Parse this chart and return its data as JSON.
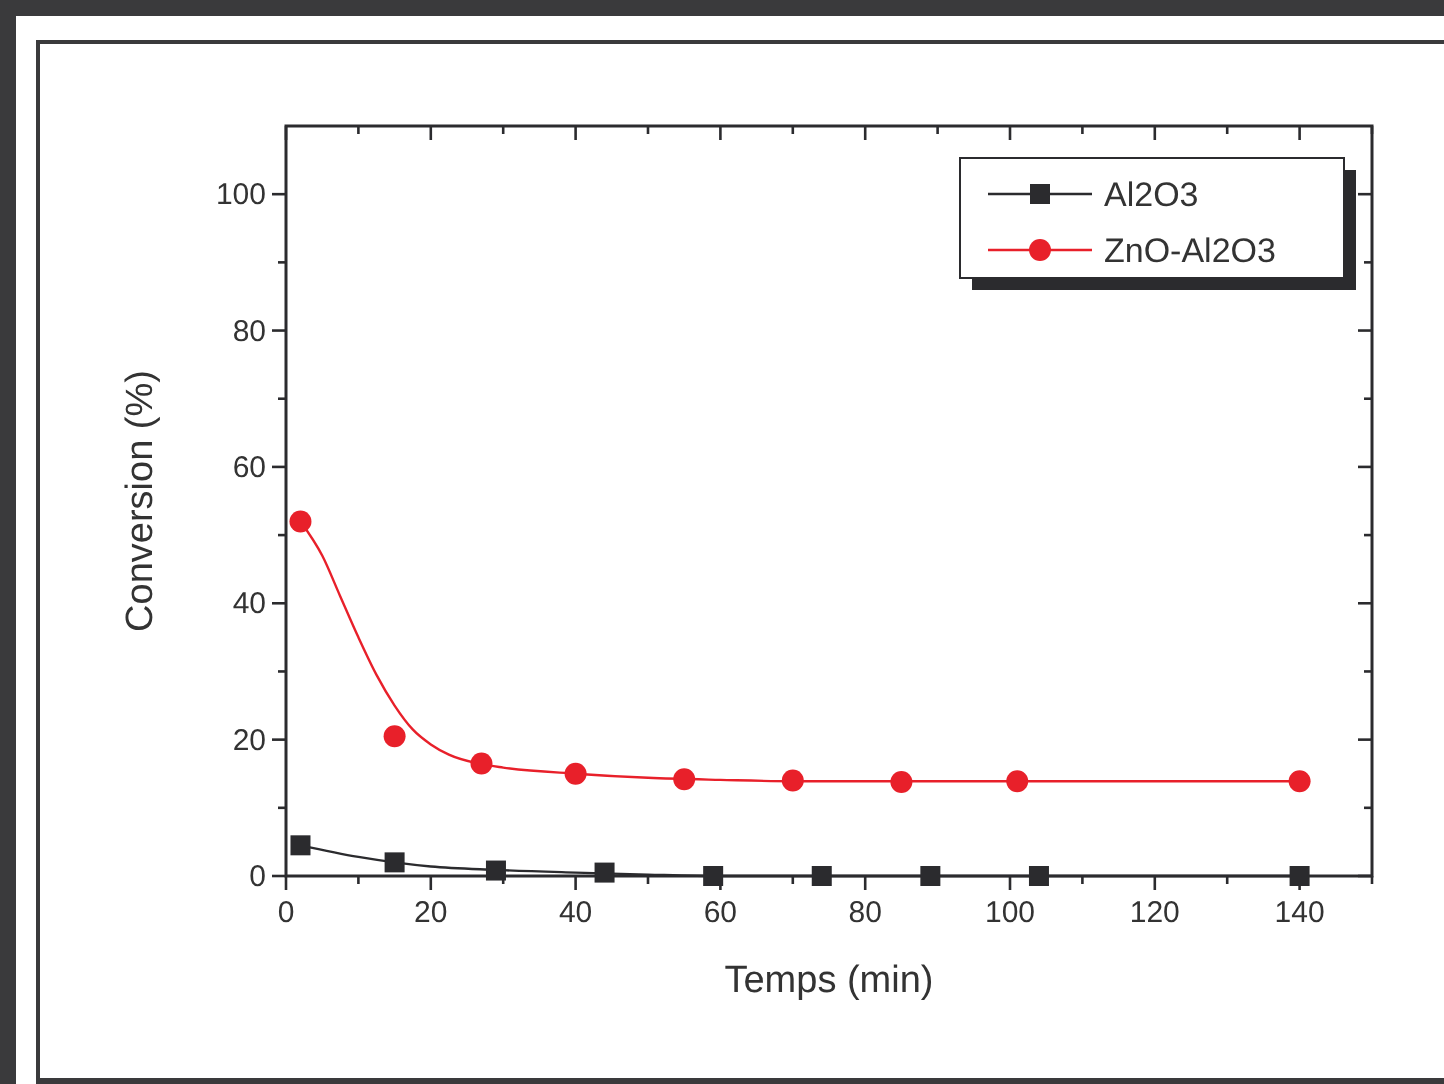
{
  "chart_data": {
    "type": "scatter",
    "xlabel": "Temps (min)",
    "ylabel": "Conversion (%)",
    "xlim": [
      0,
      150
    ],
    "ylim": [
      0,
      110
    ],
    "xticks": [
      0,
      {
        "value": 10,
        "label": null
      },
      20,
      {
        "value": 30,
        "label": null
      },
      40,
      {
        "value": 50,
        "label": null
      },
      60,
      {
        "value": 70,
        "label": null
      },
      80,
      {
        "value": 90,
        "label": null
      },
      100,
      {
        "value": 110,
        "label": null
      },
      120,
      {
        "value": 130,
        "label": null
      },
      140,
      {
        "value": 150,
        "label": null
      }
    ],
    "yticks": [
      0,
      {
        "value": 10,
        "label": null
      },
      20,
      {
        "value": 30,
        "label": null
      },
      40,
      {
        "value": 50,
        "label": null
      },
      60,
      {
        "value": 70,
        "label": null
      },
      80,
      {
        "value": 90,
        "label": null
      },
      100
    ],
    "grid": false,
    "legend": "top right",
    "series": [
      {
        "name": "Al2O3",
        "color": "#2b2b2e",
        "marker": "square",
        "x": [
          2,
          15,
          29,
          44,
          59,
          74,
          89,
          104,
          140
        ],
        "values": [
          4.5,
          2,
          0.8,
          0.5,
          0,
          0,
          0,
          0,
          0
        ]
      },
      {
        "name": "ZnO-Al2O3",
        "color": "#e8202a",
        "marker": "circle",
        "x": [
          2,
          15,
          27,
          40,
          55,
          70,
          85,
          101,
          140
        ],
        "values": [
          52,
          20.5,
          16.5,
          15,
          14.2,
          14,
          13.8,
          13.9,
          13.9
        ]
      },
      {
        "type": "line",
        "color": "#2b2b2e",
        "x": [
          2,
          10,
          15,
          20,
          29,
          40,
          50,
          60,
          140
        ],
        "values": [
          4.5,
          2.8,
          2,
          1.4,
          0.9,
          0.5,
          0.2,
          0,
          0
        ]
      },
      {
        "type": "line",
        "color": "#e8202a",
        "x": [
          2,
          5,
          7.5,
          10,
          12.5,
          15,
          17.5,
          20,
          22.5,
          27,
          30,
          40,
          50,
          60,
          70,
          100,
          140
        ],
        "values": [
          52,
          47,
          41,
          35,
          29.5,
          25,
          21.5,
          19.3,
          17.8,
          16.4,
          15.9,
          15,
          14.4,
          14.1,
          13.9,
          13.9,
          13.9
        ]
      }
    ]
  }
}
